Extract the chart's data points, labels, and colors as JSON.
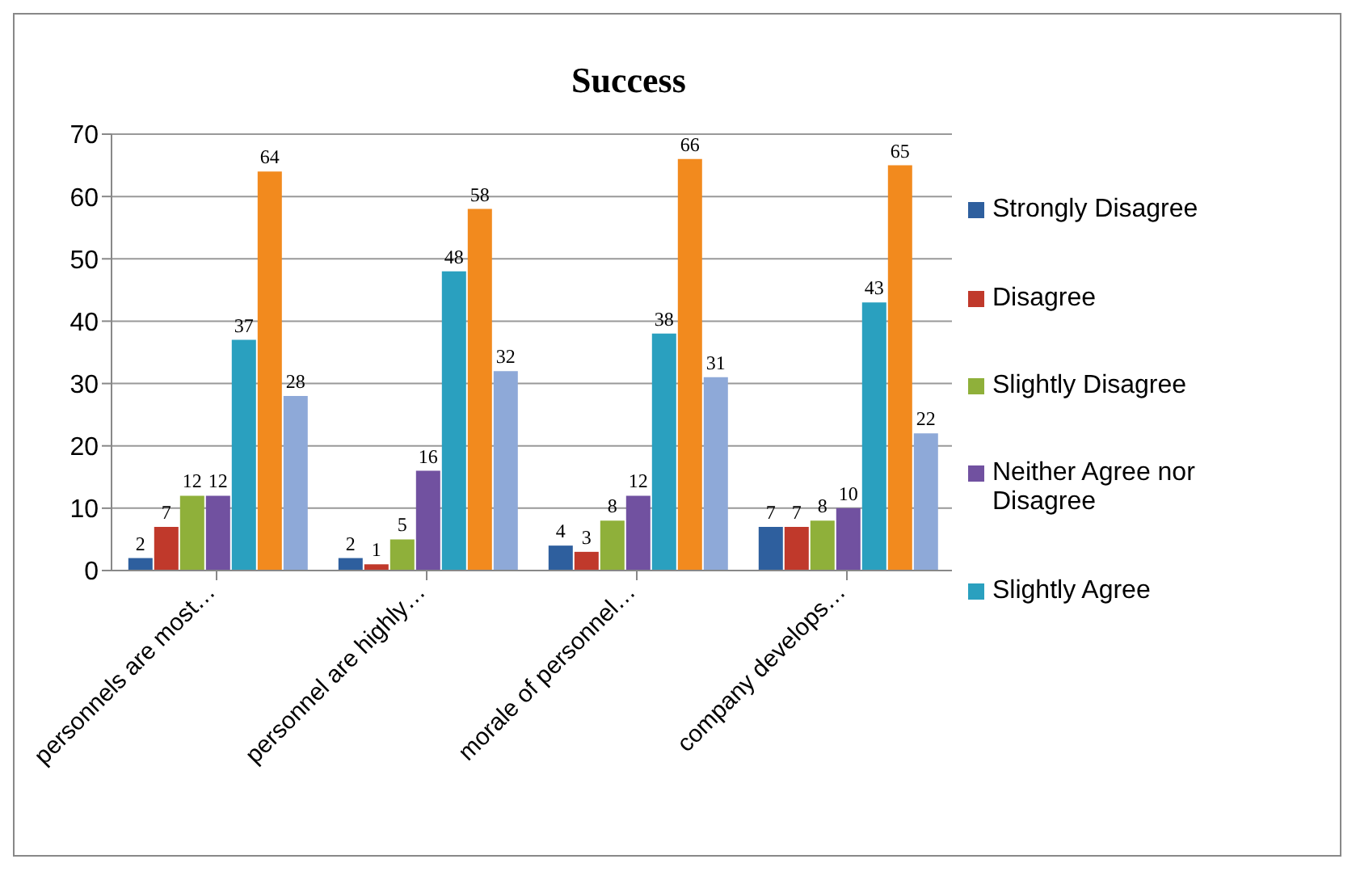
{
  "chart_data": {
    "type": "bar",
    "title": "Success",
    "categories": [
      "personnels are most…",
      "personnel are highly…",
      "morale of personnel…",
      "company develops…"
    ],
    "series": [
      {
        "name": "Strongly Disagree",
        "color": "#2e5f9e",
        "values": [
          2,
          2,
          4,
          7
        ]
      },
      {
        "name": "Disagree",
        "color": "#c0392b",
        "values": [
          7,
          1,
          3,
          7
        ]
      },
      {
        "name": "Slightly Disagree",
        "color": "#8fb03a",
        "values": [
          12,
          5,
          8,
          8
        ]
      },
      {
        "name": "Neither Agree nor Disagree",
        "color": "#7151a0",
        "values": [
          12,
          16,
          12,
          10
        ]
      },
      {
        "name": "Slightly Agree",
        "color": "#2aa0bf",
        "values": [
          37,
          48,
          38,
          43
        ]
      },
      {
        "color": "#f28a1e",
        "values": [
          64,
          58,
          66,
          65
        ]
      },
      {
        "color": "#8ea9d8",
        "values": [
          28,
          32,
          31,
          22
        ]
      }
    ],
    "ylim": [
      0,
      70
    ],
    "yticks": [
      0,
      10,
      20,
      30,
      40,
      50,
      60,
      70
    ],
    "grid": "y",
    "legend": "right",
    "data_labels": true
  }
}
